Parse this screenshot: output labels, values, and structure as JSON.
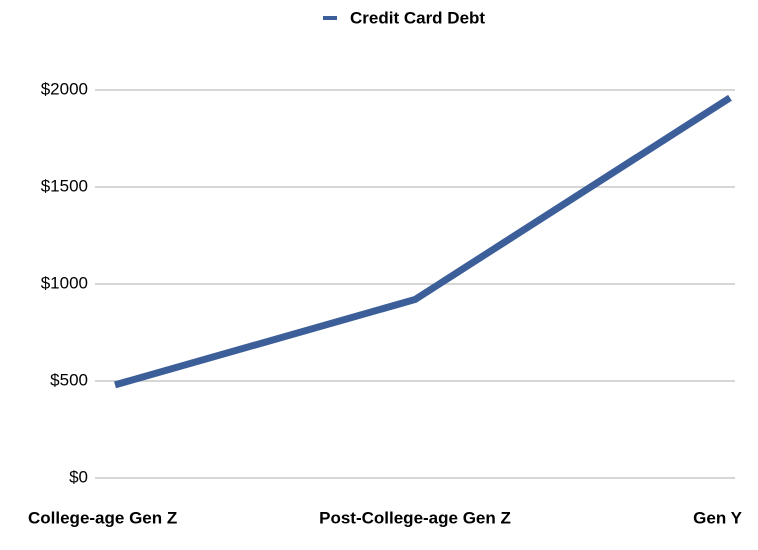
{
  "chart_data": {
    "type": "line",
    "categories": [
      "College-age Gen Z",
      "Post-College-age Gen Z",
      "Gen Y"
    ],
    "series": [
      {
        "name": "Credit Card Debt",
        "color": "#3d5f99",
        "values": [
          480,
          920,
          1960
        ]
      }
    ],
    "ylim": [
      0,
      2000
    ],
    "yticks": [
      {
        "value": 0,
        "label": "$0"
      },
      {
        "value": 500,
        "label": "$500"
      },
      {
        "value": 1000,
        "label": "$1000"
      },
      {
        "value": 1500,
        "label": "$1500"
      },
      {
        "value": 2000,
        "label": "$2000"
      }
    ],
    "grid": true,
    "legend": "top"
  }
}
